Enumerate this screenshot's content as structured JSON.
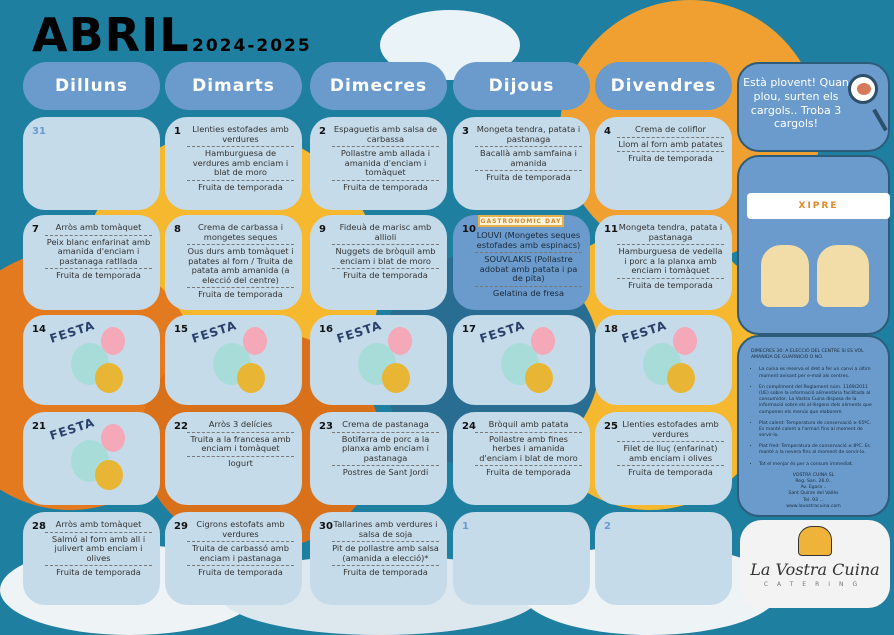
{
  "header": {
    "month": "ABRIL",
    "school_year": "2024-2025"
  },
  "days_of_week": [
    "Dilluns",
    "Dimarts",
    "Dimecres",
    "Dijous",
    "Divendres"
  ],
  "weeks": [
    [
      {
        "day": "31",
        "dishes": []
      },
      {
        "day": "1",
        "dishes": [
          "Llenties estofades amb verdures",
          "Hamburguesa de verdures amb enciam i blat de moro",
          "Fruita de temporada"
        ]
      },
      {
        "day": "2",
        "dishes": [
          "Espaguetis amb salsa de carbassa",
          "Pollastre amb allada i amanida d'enciam i tomàquet",
          "Fruita de temporada"
        ]
      },
      {
        "day": "3",
        "dishes": [
          "Mongeta tendra, patata i pastanaga",
          "Bacallà amb samfaina i amanida",
          "Fruita de temporada"
        ]
      },
      {
        "day": "4",
        "dishes": [
          "Crema de coliflor",
          "Llom al forn amb patates",
          "Fruita de temporada"
        ]
      }
    ],
    [
      {
        "day": "7",
        "dishes": [
          "Arròs amb tomàquet",
          "Peix blanc enfarinat amb amanida d'enciam i pastanaga ratllada",
          "Fruita de temporada"
        ]
      },
      {
        "day": "8",
        "dishes": [
          "Crema de carbassa i mongetes seques",
          "Ous durs amb tomàquet i patates al forn / Truita de patata amb amanida (a elecció del centre)",
          "Fruita de temporada"
        ]
      },
      {
        "day": "9",
        "dishes": [
          "Fideuà de marisc amb allioli",
          "Nuggets de bròquil amb enciam i blat de moro",
          "Fruita de temporada"
        ]
      },
      {
        "day": "10",
        "badge": "GASTRONOMIC DAY",
        "dishes": [
          "LOUVI (Mongetes seques estofades amb espinacs)",
          "SOUVLAKIS (Pollastre adobat amb patata i pa de pita)",
          "Gelatina de fresa"
        ]
      },
      {
        "day": "11",
        "dishes": [
          "Mongeta tendra, patata i pastanaga",
          "Hamburguesa de vedella i porc a la planxa amb enciam i tomàquet",
          "Fruita de temporada"
        ]
      }
    ],
    [
      {
        "day": "14",
        "festa": "FESTA"
      },
      {
        "day": "15",
        "festa": "FESTA"
      },
      {
        "day": "16",
        "festa": "FESTA"
      },
      {
        "day": "17",
        "festa": "FESTA"
      },
      {
        "day": "18",
        "festa": "FESTA"
      }
    ],
    [
      {
        "day": "21",
        "festa": "FESTA"
      },
      {
        "day": "22",
        "dishes": [
          "Arròs 3 delícies",
          "Truita a la francesa amb enciam i tomàquet",
          "Iogurt"
        ]
      },
      {
        "day": "23",
        "dishes": [
          "Crema de pastanaga",
          "Botifarra de porc a la planxa amb enciam i pastanaga",
          "Postres de Sant Jordi"
        ]
      },
      {
        "day": "24",
        "dishes": [
          "Bròquil amb patata",
          "Pollastre amb fines herbes i amanida d'enciam i blat de moro",
          "Fruita de temporada"
        ]
      },
      {
        "day": "25",
        "dishes": [
          "Llenties estofades amb verdures",
          "Filet de lluç (enfarinat) amb enciam i olives",
          "Fruita de temporada"
        ]
      }
    ],
    [
      {
        "day": "28",
        "dishes": [
          "Arròs amb tomàquet",
          "Salmó al forn amb all i julivert amb enciam i olives",
          "Fruita de temporada"
        ]
      },
      {
        "day": "29",
        "dishes": [
          "Cigrons estofats amb verdures",
          "Truita de carbassó amb enciam i pastanaga",
          "Fruita de temporada"
        ]
      },
      {
        "day": "30",
        "dishes": [
          "Tallarines amb verdures i salsa de soja",
          "Pit de pollastre amb salsa (amanida a elecció)*",
          "Fruita de temporada"
        ]
      },
      {
        "day": "1",
        "dishes": []
      },
      {
        "day": "2",
        "dishes": []
      }
    ]
  ],
  "sidebar": {
    "game_text": "Està plovent! Quan plou, surten els cargols.. Troba 3 cargols!",
    "xipre_banner": "XIPRE",
    "info_heading": "DIMECRES 30: A ELECCIÓ DEL CENTRE SI ES VOL AMANIDA DE GUARNICIÓ O NO.",
    "info_items": [
      "La cuina es reserva el dret a fer un canvi a últim moment avisant per e-mail als centres.",
      "En compliment del Reglament núm. 1169/2011 (UE) sobre la informació alimentària facilitada al consumidor, La Vostra Cuina disposa de la informació sobre els al·lèrgens dels aliments que componen els menús que elaborem.",
      "Plat calent: Temperatura de conservació ≥ 65ºC. Es manté calent a l'armari fins al moment de servir-lo.",
      "Plat fred: Temperatura de conservació ≤ 8ºC. Es manté a la nevera fins al moment de servir-lo.",
      "Tot el menjar és per a consum immediat."
    ],
    "footer": [
      "VOSTRA CUINA SL",
      "Reg. San. 26.0..",
      "Av. Egara ..",
      "Sant Quirze del Vallès",
      "Tel. 93 ...",
      "www.lavostracuina.com"
    ]
  },
  "logo": {
    "name": "La Vostra Cuina",
    "tagline": "CATERING"
  },
  "colors": {
    "background": "#1f7fa0",
    "card": "#c5dbea",
    "pill": "#6a9bcc",
    "accent_orange": "#f0a030"
  }
}
